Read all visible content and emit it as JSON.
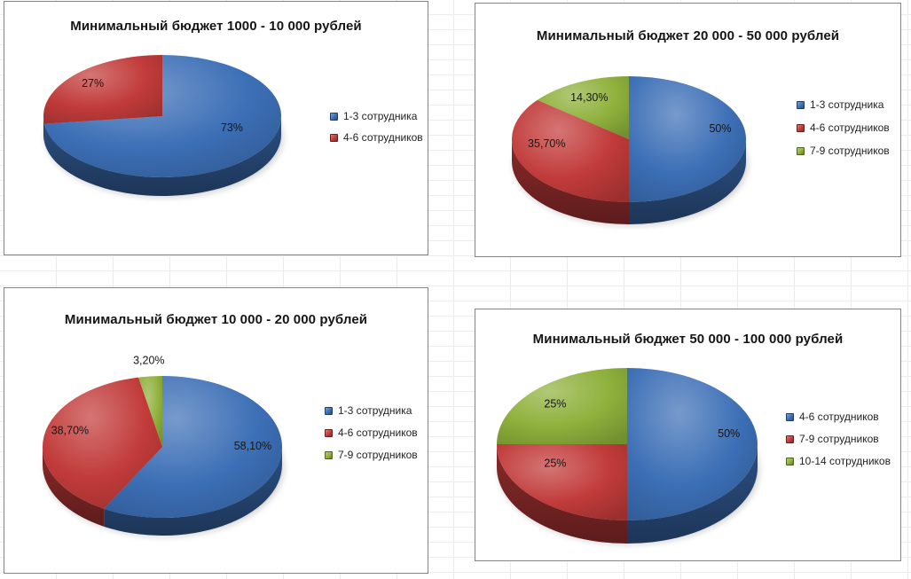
{
  "chart_data": [
    {
      "type": "pie",
      "effect": "3d",
      "title": "Минимальный бюджет 1000 - 10 000 рублей",
      "legend_position": "right",
      "slices": [
        {
          "name": "1-3 сотрудника",
          "value": 73,
          "label": "73%",
          "color": "#3C6FB6"
        },
        {
          "name": "4-6 сотрудников",
          "value": 27,
          "label": "27%",
          "color": "#C13B3A"
        }
      ]
    },
    {
      "type": "pie",
      "effect": "3d",
      "title": "Минимальный бюджет 20 000 - 50 000 рублей",
      "legend_position": "right",
      "slices": [
        {
          "name": "1-3 сотрудника",
          "value": 50,
          "label": "50%",
          "color": "#3C6FB6"
        },
        {
          "name": "4-6 сотрудников",
          "value": 35.7,
          "label": "35,70%",
          "color": "#C13B3A"
        },
        {
          "name": "7-9 сотрудников",
          "value": 14.3,
          "label": "14,30%",
          "color": "#8FB13C"
        }
      ]
    },
    {
      "type": "pie",
      "effect": "3d",
      "title": "Минимальный бюджет 10 000 - 20 000 рублей",
      "legend_position": "right",
      "slices": [
        {
          "name": "1-3 сотрудника",
          "value": 58.1,
          "label": "58,10%",
          "color": "#3C6FB6"
        },
        {
          "name": "4-6 сотрудников",
          "value": 38.7,
          "label": "38,70%",
          "color": "#C13B3A"
        },
        {
          "name": "7-9 сотрудников",
          "value": 3.2,
          "label": "3,20%",
          "color": "#8FB13C"
        }
      ]
    },
    {
      "type": "pie",
      "effect": "3d",
      "title": "Минимальный бюджет 50 000 - 100 000 рублей",
      "legend_position": "right",
      "slices": [
        {
          "name": "4-6 сотрудников",
          "value": 50,
          "label": "50%",
          "color": "#3C6FB6"
        },
        {
          "name": "7-9 сотрудников",
          "value": 25,
          "label": "25%",
          "color": "#C13B3A"
        },
        {
          "name": "10-14 сотрудников",
          "value": 25,
          "label": "25%",
          "color": "#8FB13C"
        }
      ]
    }
  ],
  "palette": {
    "series_blue": "#3C6FB6",
    "series_red": "#C13B3A",
    "series_green": "#8FB13C",
    "chart_border": "#848484",
    "title_text": "#151515",
    "label_text": "#161616",
    "legend_text": "#222222"
  }
}
